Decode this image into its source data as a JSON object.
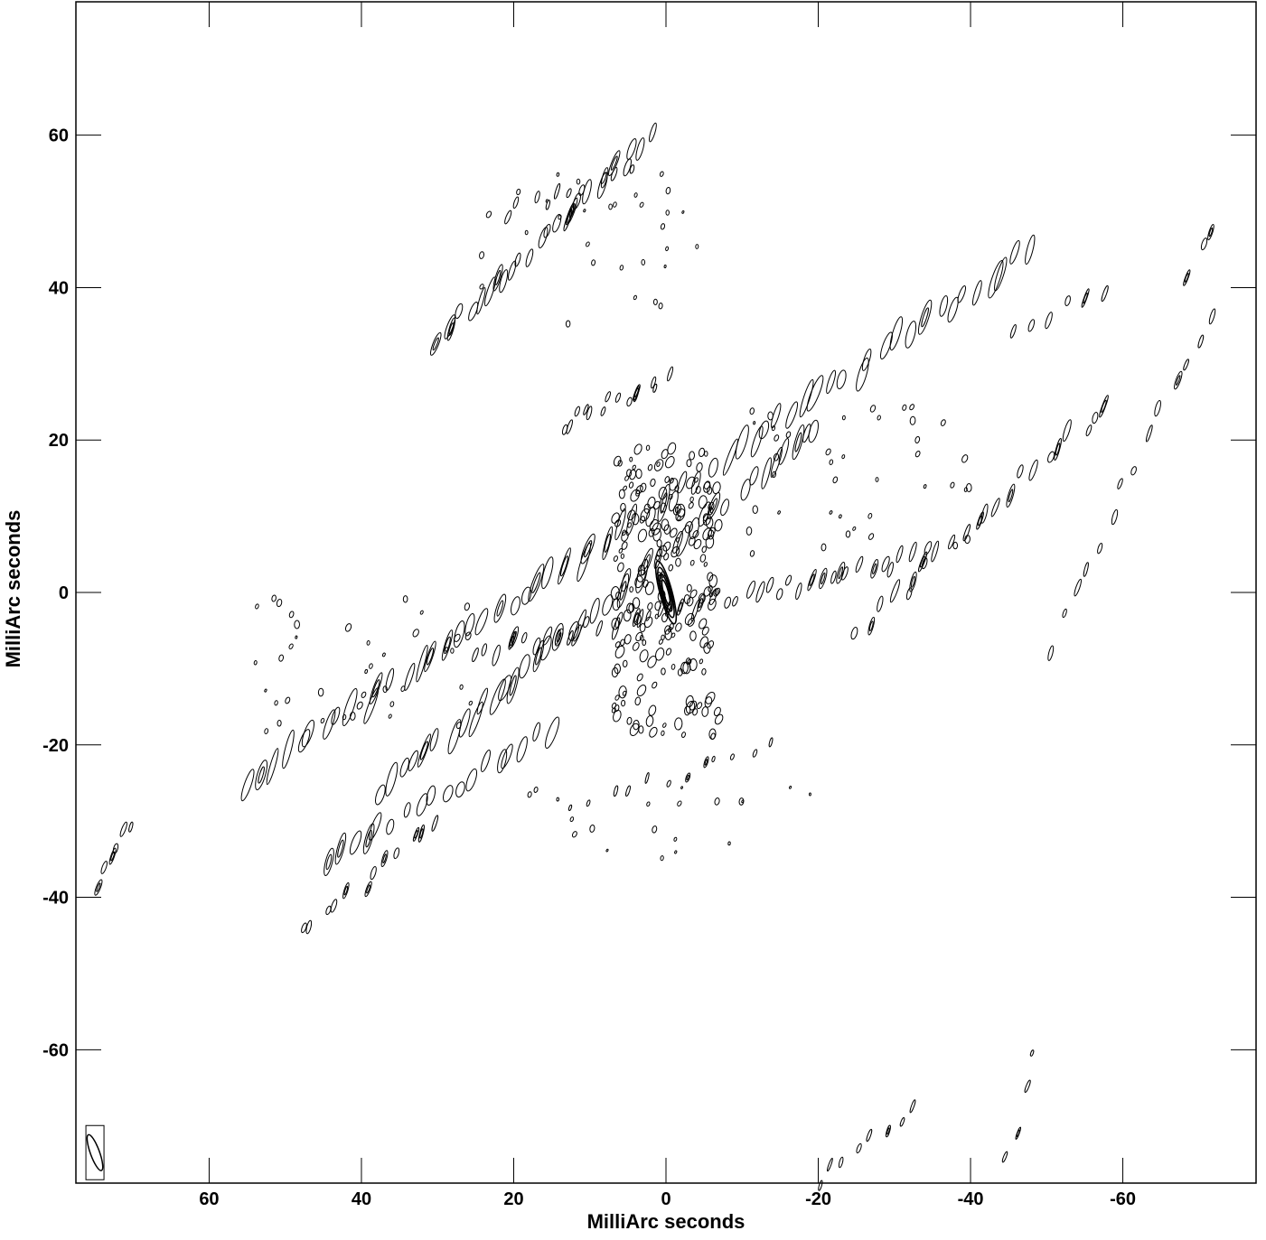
{
  "chart_data": {
    "type": "contour",
    "xlabel": "MilliArc seconds",
    "ylabel": "MilliArc seconds",
    "xlim": [
      77.5,
      -77.5
    ],
    "ylim": [
      -77.5,
      77.5
    ],
    "x_ticks": [
      60,
      40,
      20,
      0,
      -20,
      -40,
      -60
    ],
    "y_ticks": [
      60,
      40,
      20,
      0,
      -20,
      -40,
      -60
    ],
    "x_tick_labels": [
      "60",
      "40",
      "20",
      "0",
      "-20",
      "-40",
      "-60"
    ],
    "y_tick_labels": [
      "60",
      "40",
      "20",
      "0",
      "-20",
      "-40",
      "-60"
    ],
    "grid": false,
    "colors": {
      "contour": "#000000",
      "background": "#ffffff"
    },
    "beam": {
      "x": 75.0,
      "y": -73.5,
      "major": 5.0,
      "minor": 1.2,
      "pa_deg": 160
    },
    "peak": {
      "x": 0,
      "y": 0,
      "major": 8.5,
      "minor": 1.6,
      "pa_deg": 165,
      "levels": 4
    },
    "stripes": [
      {
        "name": "sidelobe-arc-upper",
        "x0": 30,
        "y0": 33,
        "x1": 2,
        "y1": 60,
        "n": 26,
        "major": 3.2,
        "minor": 0.7
      },
      {
        "name": "sidelobe-arc-upper-2",
        "x0": 21,
        "y0": 50,
        "x1": 5,
        "y1": 55,
        "n": 10,
        "major": 2.0,
        "minor": 0.5
      },
      {
        "name": "ridge-main",
        "x0": 55,
        "y0": -25,
        "x1": -48,
        "y1": 45,
        "n": 60,
        "major": 4.2,
        "minor": 0.9
      },
      {
        "name": "ridge-central",
        "x0": 37,
        "y0": -26,
        "x1": -20,
        "y1": 22,
        "n": 40,
        "major": 4.0,
        "minor": 0.9
      },
      {
        "name": "ridge-lower",
        "x0": 45,
        "y0": -35,
        "x1": 15,
        "y1": -18,
        "n": 18,
        "major": 3.6,
        "minor": 0.9
      },
      {
        "name": "ridge-low-left",
        "x0": 75,
        "y0": -38,
        "x1": 71,
        "y1": -30,
        "n": 6,
        "major": 2.0,
        "minor": 0.5
      },
      {
        "name": "ridge-mid-horizontal",
        "x0": 25,
        "y0": -8,
        "x1": -35,
        "y1": 5,
        "n": 45,
        "major": 2.4,
        "minor": 0.6
      },
      {
        "name": "ridge-right",
        "x0": -25,
        "y0": -5,
        "x1": -58,
        "y1": 25,
        "n": 22,
        "major": 2.6,
        "minor": 0.6
      },
      {
        "name": "ridge-far-right",
        "x0": -50,
        "y0": -7,
        "x1": -72,
        "y1": 37,
        "n": 14,
        "major": 2.0,
        "minor": 0.5
      },
      {
        "name": "ridge-right-upper",
        "x0": -45,
        "y0": 34,
        "x1": -57,
        "y1": 40,
        "n": 6,
        "major": 2.2,
        "minor": 0.5
      },
      {
        "name": "ridge-lower-left",
        "x0": 48,
        "y0": -45,
        "x1": 30,
        "y1": -30,
        "n": 12,
        "major": 2.0,
        "minor": 0.5
      },
      {
        "name": "ridge-bottom",
        "x0": -20,
        "y0": -77,
        "x1": -33,
        "y1": -68,
        "n": 8,
        "major": 1.6,
        "minor": 0.4
      },
      {
        "name": "ridge-upper-mid",
        "x0": 14,
        "y0": 22,
        "x1": 0,
        "y1": 28,
        "n": 14,
        "major": 1.8,
        "minor": 0.5
      },
      {
        "name": "ridge-lower-mid",
        "x0": 12,
        "y0": -28,
        "x1": -14,
        "y1": -20,
        "n": 12,
        "major": 1.2,
        "minor": 0.4
      },
      {
        "name": "ridge-bottom-right",
        "x0": -45,
        "y0": -75,
        "x1": -48,
        "y1": -60,
        "n": 4,
        "major": 1.4,
        "minor": 0.4
      },
      {
        "name": "ridge-top-right",
        "x0": -68,
        "y0": 42,
        "x1": -72,
        "y1": 48,
        "n": 3,
        "major": 2.0,
        "minor": 0.5
      }
    ],
    "blobs": [
      {
        "name": "central-blob-field",
        "cx": 0,
        "cy": 0,
        "w": 14,
        "h": 38,
        "n": 220,
        "size": 0.7
      },
      {
        "name": "scatter-field-left",
        "cx": 40,
        "cy": -10,
        "w": 30,
        "h": 20,
        "n": 40,
        "size": 0.45
      },
      {
        "name": "scatter-field-right",
        "cx": -25,
        "cy": 15,
        "w": 30,
        "h": 20,
        "n": 40,
        "size": 0.45
      },
      {
        "name": "scatter-field-top",
        "cx": 10,
        "cy": 45,
        "w": 30,
        "h": 20,
        "n": 30,
        "size": 0.4
      },
      {
        "name": "scatter-field-bottom",
        "cx": 0,
        "cy": -30,
        "w": 40,
        "h": 10,
        "n": 20,
        "size": 0.4
      }
    ]
  }
}
